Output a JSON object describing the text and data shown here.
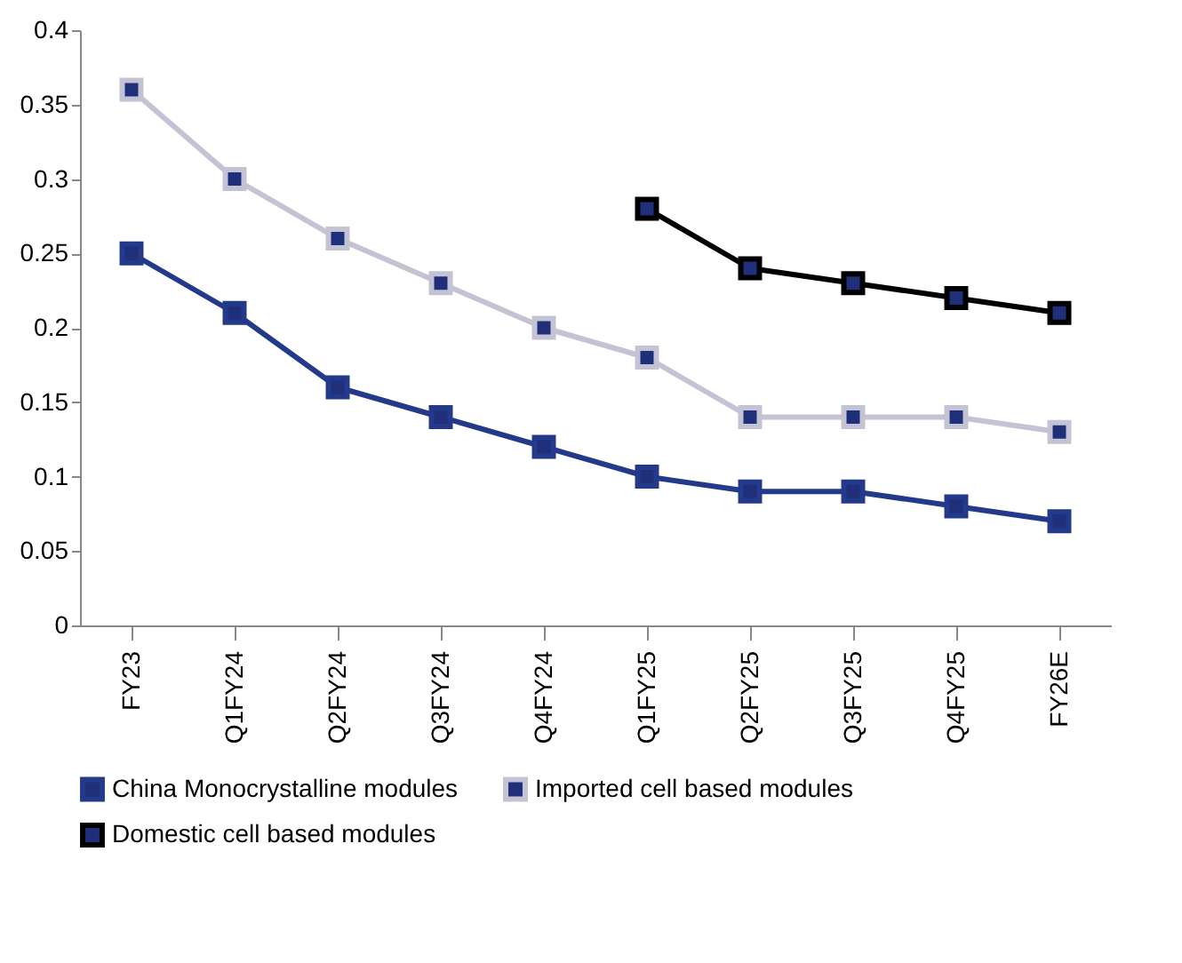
{
  "chart_data": {
    "type": "line",
    "categories": [
      "FY23",
      "Q1FY24",
      "Q2FY24",
      "Q3FY24",
      "Q4FY24",
      "Q1FY25",
      "Q2FY25",
      "Q3FY25",
      "Q4FY25",
      "FY26E"
    ],
    "series": [
      {
        "name": "China Monocrystalline modules",
        "color": "#233a8b",
        "values": [
          0.25,
          0.21,
          0.16,
          0.14,
          0.12,
          0.1,
          0.09,
          0.09,
          0.08,
          0.07
        ]
      },
      {
        "name": "Imported cell based modules",
        "color": "#c3c3d3",
        "values": [
          0.36,
          0.3,
          0.26,
          0.23,
          0.2,
          0.18,
          0.14,
          0.14,
          0.14,
          0.13
        ]
      },
      {
        "name": "Domestic cell based modules",
        "color": "#000000",
        "values": [
          null,
          null,
          null,
          null,
          null,
          0.28,
          0.24,
          0.23,
          0.22,
          0.21
        ]
      }
    ],
    "ylim": [
      0,
      0.4
    ],
    "yticks": [
      0,
      0.05,
      0.1,
      0.15,
      0.2,
      0.25,
      0.3,
      0.35,
      0.4
    ],
    "grid": false,
    "legend": "bottom",
    "marker": "square",
    "line_style": "solid"
  }
}
